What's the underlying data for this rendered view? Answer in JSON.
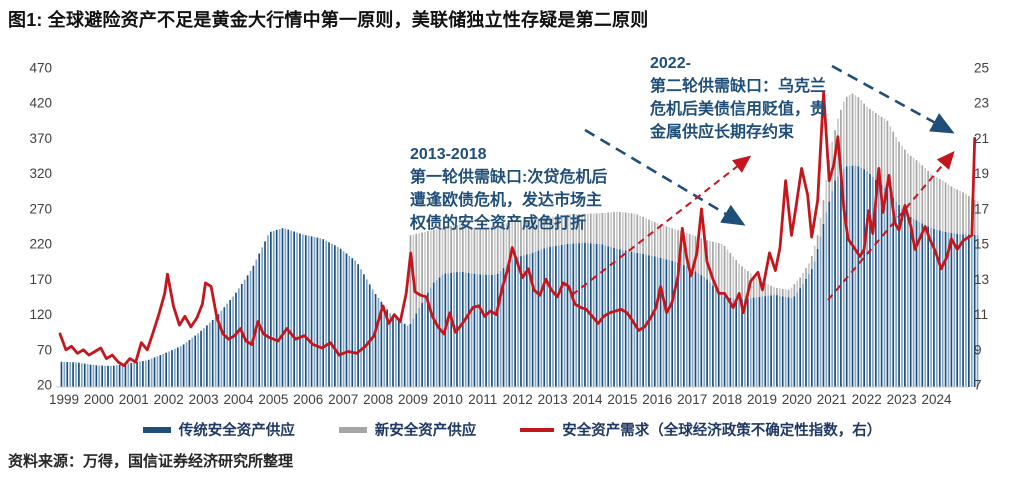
{
  "figure": {
    "title": "图1: 全球避险资产不足是黄金大行情中第一原则，美联储独立性存疑是第二原则",
    "source": "资料来源：万得，国信证券经济研究所整理"
  },
  "legend": {
    "items": [
      {
        "label": "传统安全资产供应",
        "color": "#1F4E79",
        "type": "bar"
      },
      {
        "label": "新安全资产供应",
        "color": "#A6A6A6",
        "type": "bar"
      },
      {
        "label": "安全资产需求（全球经济政策不确定性指数，右）",
        "color": "#C5161D",
        "type": "line"
      }
    ]
  },
  "annotations": {
    "round1": {
      "lines": [
        "2013-2018",
        "第一轮供需缺口:次贷危机后",
        "遭逢欧债危机，发达市场主",
        "权债的安全资产成色打折"
      ]
    },
    "round2": {
      "lines": [
        "2022-",
        "第二轮供需缺口：乌克兰",
        "危机后美债信用贬值，贵",
        "金属供应长期存约束"
      ]
    }
  },
  "chart_data": {
    "type": "bar",
    "subtype": "stacked monthly bars with line overlay (dual axis)",
    "title": "",
    "xlabel": "",
    "ylabel_left": "",
    "ylabel_right": "",
    "grid": false,
    "legend_position": "bottom-center",
    "left_axis": {
      "range": [
        20,
        470
      ],
      "ticks": [
        470,
        420,
        370,
        320,
        270,
        220,
        170,
        120,
        70,
        20
      ]
    },
    "right_axis": {
      "range": [
        7,
        25
      ],
      "ticks": [
        25,
        23,
        21,
        19,
        17,
        15,
        13,
        11,
        9,
        7
      ]
    },
    "x_axis": {
      "range": [
        1999,
        2025.3
      ],
      "ticks": [
        1999,
        2000,
        2001,
        2002,
        2003,
        2004,
        2005,
        2006,
        2007,
        2008,
        2009,
        2010,
        2011,
        2012,
        2013,
        2014,
        2015,
        2016,
        2017,
        2018,
        2019,
        2020,
        2021,
        2022,
        2023,
        2024
      ]
    },
    "colors": {
      "bar1": "#1F4E79",
      "bar1_alt": "#7FA8CC",
      "bar2": "#A6A6A6",
      "bar2_alt": "#CACACA",
      "line": "#C5161D"
    },
    "series": [
      {
        "name": "传统安全资产供应",
        "type": "bar",
        "axis": "left",
        "note": "approximate envelope anchors [year, value], monthly bars interpolated",
        "anchors": [
          [
            1999.0,
            53
          ],
          [
            1999.5,
            52
          ],
          [
            2000.0,
            48
          ],
          [
            2000.5,
            47
          ],
          [
            2001.0,
            51
          ],
          [
            2001.5,
            55
          ],
          [
            2002.0,
            65
          ],
          [
            2002.5,
            76
          ],
          [
            2003.0,
            95
          ],
          [
            2003.5,
            118
          ],
          [
            2004.0,
            148
          ],
          [
            2004.5,
            185
          ],
          [
            2005.0,
            237
          ],
          [
            2005.4,
            243
          ],
          [
            2006.0,
            233
          ],
          [
            2006.5,
            228
          ],
          [
            2007.0,
            215
          ],
          [
            2007.5,
            195
          ],
          [
            2008.0,
            152
          ],
          [
            2008.5,
            119
          ],
          [
            2009.0,
            103
          ],
          [
            2009.3,
            130
          ],
          [
            2009.7,
            165
          ],
          [
            2010.0,
            178
          ],
          [
            2010.5,
            181
          ],
          [
            2011.0,
            177
          ],
          [
            2011.5,
            176
          ],
          [
            2012.0,
            200
          ],
          [
            2012.5,
            207
          ],
          [
            2013.0,
            216
          ],
          [
            2013.5,
            220
          ],
          [
            2014.0,
            222
          ],
          [
            2014.5,
            220
          ],
          [
            2015.0,
            213
          ],
          [
            2015.5,
            208
          ],
          [
            2016.0,
            203
          ],
          [
            2016.5,
            197
          ],
          [
            2017.0,
            188
          ],
          [
            2017.5,
            172
          ],
          [
            2018.0,
            146
          ],
          [
            2018.5,
            141
          ],
          [
            2019.0,
            145
          ],
          [
            2019.5,
            148
          ],
          [
            2020.0,
            143
          ],
          [
            2020.3,
            164
          ],
          [
            2020.6,
            190
          ],
          [
            2020.9,
            254
          ],
          [
            2021.2,
            310
          ],
          [
            2021.5,
            330
          ],
          [
            2021.8,
            332
          ],
          [
            2022.1,
            325
          ],
          [
            2022.4,
            310
          ],
          [
            2022.7,
            297
          ],
          [
            2023.0,
            278
          ],
          [
            2023.3,
            261
          ],
          [
            2023.6,
            252
          ],
          [
            2024.0,
            242
          ],
          [
            2024.4,
            237
          ],
          [
            2024.8,
            234
          ],
          [
            2025.25,
            233
          ]
        ]
      },
      {
        "name": "新安全资产供应",
        "type": "bar",
        "axis": "left",
        "stacked_on": "传统安全资产供应",
        "note": "anchors give TOTAL stack top (traditional + new); series starts 2009",
        "anchors": [
          [
            2009.0,
            232
          ],
          [
            2009.5,
            238
          ],
          [
            2010.0,
            244
          ],
          [
            2010.5,
            248
          ],
          [
            2011.0,
            242
          ],
          [
            2011.5,
            246
          ],
          [
            2012.0,
            252
          ],
          [
            2012.5,
            255
          ],
          [
            2013.0,
            258
          ],
          [
            2013.5,
            262
          ],
          [
            2014.0,
            263
          ],
          [
            2014.5,
            264
          ],
          [
            2015.0,
            266
          ],
          [
            2015.5,
            263
          ],
          [
            2016.0,
            252
          ],
          [
            2016.5,
            243
          ],
          [
            2017.0,
            235
          ],
          [
            2017.5,
            226
          ],
          [
            2018.0,
            220
          ],
          [
            2018.5,
            190
          ],
          [
            2019.0,
            170
          ],
          [
            2019.5,
            158
          ],
          [
            2019.9,
            155
          ],
          [
            2020.2,
            172
          ],
          [
            2020.5,
            196
          ],
          [
            2020.7,
            230
          ],
          [
            2020.9,
            290
          ],
          [
            2021.1,
            360
          ],
          [
            2021.3,
            400
          ],
          [
            2021.5,
            428
          ],
          [
            2021.7,
            434
          ],
          [
            2021.9,
            428
          ],
          [
            2022.1,
            416
          ],
          [
            2022.4,
            405
          ],
          [
            2022.7,
            396
          ],
          [
            2023.0,
            368
          ],
          [
            2023.3,
            348
          ],
          [
            2023.6,
            337
          ],
          [
            2024.0,
            318
          ],
          [
            2024.3,
            310
          ],
          [
            2024.6,
            300
          ],
          [
            2024.9,
            293
          ],
          [
            2025.25,
            281
          ]
        ]
      },
      {
        "name": "安全资产需求（全球经济政策不确定性指数，右）",
        "type": "line",
        "axis": "right",
        "anchors": [
          [
            1999.0,
            9.9
          ],
          [
            1999.17,
            9.0
          ],
          [
            1999.33,
            9.2
          ],
          [
            1999.5,
            8.8
          ],
          [
            1999.67,
            9.0
          ],
          [
            1999.83,
            8.7
          ],
          [
            2000.0,
            8.9
          ],
          [
            2000.17,
            9.1
          ],
          [
            2000.33,
            8.5
          ],
          [
            2000.5,
            8.7
          ],
          [
            2000.67,
            8.3
          ],
          [
            2000.83,
            8.1
          ],
          [
            2001.0,
            8.5
          ],
          [
            2001.17,
            8.3
          ],
          [
            2001.33,
            9.4
          ],
          [
            2001.5,
            9.0
          ],
          [
            2001.67,
            10.0
          ],
          [
            2001.83,
            11.0
          ],
          [
            2002.0,
            12.2
          ],
          [
            2002.08,
            13.3
          ],
          [
            2002.25,
            11.5
          ],
          [
            2002.42,
            10.4
          ],
          [
            2002.58,
            10.9
          ],
          [
            2002.75,
            10.3
          ],
          [
            2002.92,
            10.8
          ],
          [
            2003.08,
            11.6
          ],
          [
            2003.17,
            12.8
          ],
          [
            2003.33,
            12.6
          ],
          [
            2003.5,
            10.8
          ],
          [
            2003.67,
            9.9
          ],
          [
            2003.83,
            9.6
          ],
          [
            2004.0,
            9.8
          ],
          [
            2004.17,
            10.2
          ],
          [
            2004.33,
            9.5
          ],
          [
            2004.5,
            9.3
          ],
          [
            2004.67,
            10.6
          ],
          [
            2004.83,
            9.9
          ],
          [
            2005.0,
            9.7
          ],
          [
            2005.25,
            9.5
          ],
          [
            2005.5,
            10.2
          ],
          [
            2005.75,
            9.6
          ],
          [
            2006.0,
            9.8
          ],
          [
            2006.25,
            9.3
          ],
          [
            2006.5,
            9.1
          ],
          [
            2006.75,
            9.4
          ],
          [
            2007.0,
            8.7
          ],
          [
            2007.25,
            8.9
          ],
          [
            2007.5,
            8.8
          ],
          [
            2007.75,
            9.2
          ],
          [
            2008.0,
            9.8
          ],
          [
            2008.25,
            11.5
          ],
          [
            2008.42,
            10.5
          ],
          [
            2008.58,
            11.0
          ],
          [
            2008.75,
            10.6
          ],
          [
            2008.92,
            12.2
          ],
          [
            2009.05,
            14.5
          ],
          [
            2009.17,
            12.3
          ],
          [
            2009.33,
            12.1
          ],
          [
            2009.5,
            12.0
          ],
          [
            2009.67,
            10.9
          ],
          [
            2009.83,
            10.3
          ],
          [
            2010.0,
            9.9
          ],
          [
            2010.17,
            11.1
          ],
          [
            2010.33,
            10.0
          ],
          [
            2010.5,
            10.4
          ],
          [
            2010.67,
            10.9
          ],
          [
            2010.83,
            11.4
          ],
          [
            2011.0,
            11.5
          ],
          [
            2011.17,
            10.9
          ],
          [
            2011.33,
            11.2
          ],
          [
            2011.5,
            11.0
          ],
          [
            2011.67,
            12.5
          ],
          [
            2011.83,
            13.6
          ],
          [
            2011.96,
            14.8
          ],
          [
            2012.13,
            13.8
          ],
          [
            2012.25,
            13.1
          ],
          [
            2012.42,
            13.6
          ],
          [
            2012.58,
            12.4
          ],
          [
            2012.75,
            12.1
          ],
          [
            2012.92,
            13.0
          ],
          [
            2013.08,
            12.4
          ],
          [
            2013.25,
            12.0
          ],
          [
            2013.42,
            12.8
          ],
          [
            2013.58,
            12.6
          ],
          [
            2013.75,
            11.6
          ],
          [
            2013.92,
            11.4
          ],
          [
            2014.08,
            11.3
          ],
          [
            2014.25,
            10.9
          ],
          [
            2014.42,
            10.5
          ],
          [
            2014.58,
            10.9
          ],
          [
            2014.75,
            11.1
          ],
          [
            2014.92,
            11.2
          ],
          [
            2015.08,
            11.3
          ],
          [
            2015.25,
            11.1
          ],
          [
            2015.42,
            10.6
          ],
          [
            2015.58,
            10.1
          ],
          [
            2015.75,
            10.3
          ],
          [
            2015.92,
            10.8
          ],
          [
            2016.08,
            11.4
          ],
          [
            2016.21,
            12.6
          ],
          [
            2016.38,
            11.1
          ],
          [
            2016.54,
            11.7
          ],
          [
            2016.71,
            13.2
          ],
          [
            2016.83,
            15.9
          ],
          [
            2016.96,
            14.2
          ],
          [
            2017.08,
            13.2
          ],
          [
            2017.25,
            14.5
          ],
          [
            2017.38,
            17.0
          ],
          [
            2017.54,
            14.0
          ],
          [
            2017.71,
            13.0
          ],
          [
            2017.88,
            12.2
          ],
          [
            2018.04,
            12.2
          ],
          [
            2018.17,
            11.8
          ],
          [
            2018.29,
            11.4
          ],
          [
            2018.46,
            12.2
          ],
          [
            2018.58,
            11.1
          ],
          [
            2018.79,
            12.9
          ],
          [
            2019.0,
            13.4
          ],
          [
            2019.13,
            12.4
          ],
          [
            2019.33,
            14.5
          ],
          [
            2019.5,
            13.5
          ],
          [
            2019.63,
            14.8
          ],
          [
            2019.79,
            18.6
          ],
          [
            2019.96,
            15.5
          ],
          [
            2020.08,
            17.0
          ],
          [
            2020.25,
            19.3
          ],
          [
            2020.42,
            17.8
          ],
          [
            2020.54,
            15.4
          ],
          [
            2020.71,
            17.5
          ],
          [
            2020.88,
            23.6
          ],
          [
            2021.04,
            18.6
          ],
          [
            2021.17,
            19.5
          ],
          [
            2021.29,
            21.1
          ],
          [
            2021.46,
            17.0
          ],
          [
            2021.58,
            15.3
          ],
          [
            2021.75,
            14.8
          ],
          [
            2021.92,
            14.3
          ],
          [
            2022.04,
            14.7
          ],
          [
            2022.17,
            16.9
          ],
          [
            2022.29,
            15.6
          ],
          [
            2022.46,
            19.3
          ],
          [
            2022.58,
            16.8
          ],
          [
            2022.75,
            18.9
          ],
          [
            2022.92,
            16.2
          ],
          [
            2023.04,
            15.8
          ],
          [
            2023.21,
            17.2
          ],
          [
            2023.38,
            16.0
          ],
          [
            2023.5,
            14.7
          ],
          [
            2023.63,
            15.3
          ],
          [
            2023.79,
            16.0
          ],
          [
            2023.92,
            15.3
          ],
          [
            2024.08,
            14.6
          ],
          [
            2024.25,
            13.6
          ],
          [
            2024.42,
            14.3
          ],
          [
            2024.54,
            15.3
          ],
          [
            2024.71,
            14.7
          ],
          [
            2024.88,
            15.2
          ],
          [
            2025.04,
            15.4
          ],
          [
            2025.13,
            15.5
          ],
          [
            2025.21,
            21.0
          ]
        ]
      }
    ]
  }
}
